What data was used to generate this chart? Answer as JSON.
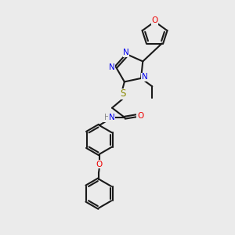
{
  "bg_color": "#ebebeb",
  "bond_color": "#1a1a1a",
  "N_color": "#0000ee",
  "O_color": "#ee0000",
  "S_color": "#888800",
  "lw": 1.5,
  "fs": 7.5,
  "xlim": [
    0,
    10
  ],
  "ylim": [
    0,
    10
  ]
}
